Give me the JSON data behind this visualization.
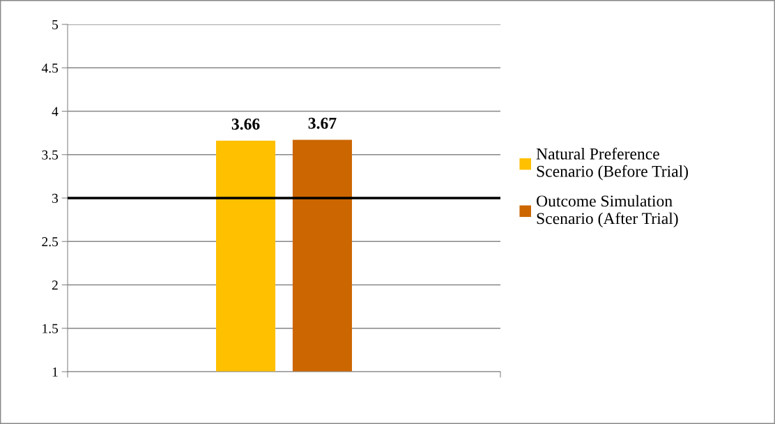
{
  "chart_data": {
    "type": "bar",
    "categories": [
      null
    ],
    "series": [
      {
        "name": "Natural Preference\nScenario (Before Trial)",
        "color": "#ffc000",
        "values": [
          3.66
        ]
      },
      {
        "name": "Outcome Simulation\nScenario (After Trial)",
        "color": "#cc6600",
        "values": [
          3.67
        ]
      }
    ],
    "ylim": [
      1,
      5
    ],
    "yticks": [
      1,
      1.5,
      2,
      2.5,
      3,
      3.5,
      4,
      4.5,
      5
    ],
    "grid": "y",
    "legend": "right",
    "data_labels": true,
    "ref_lines": [
      {
        "axis": "y",
        "value": 3,
        "color": "#000000"
      }
    ]
  }
}
